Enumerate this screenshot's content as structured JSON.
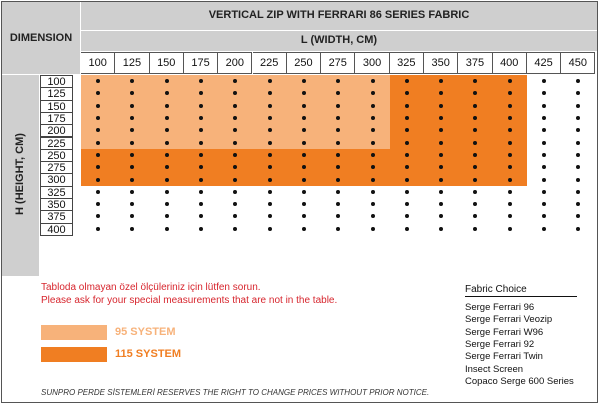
{
  "header": {
    "dimension_label": "DIMENSION",
    "title": "VERTICAL ZIP WITH FERRARI 86 SERIES FABRIC",
    "width_axis_label": "L (WIDTH, CM)",
    "height_axis_label": "H (HEIGHT, CM)"
  },
  "widths": [
    "100",
    "125",
    "150",
    "175",
    "200",
    "225",
    "250",
    "275",
    "300",
    "325",
    "350",
    "375",
    "400",
    "425",
    "450"
  ],
  "heights": [
    "100",
    "125",
    "150",
    "175",
    "200",
    "225",
    "250",
    "275",
    "300",
    "325",
    "350",
    "375",
    "400"
  ],
  "colors": {
    "header_gray": "#cfcfcf",
    "system95": "#f7b27a",
    "system115": "#f07e22",
    "note_red": "#d7262e"
  },
  "notes": {
    "turkish": "Tabloda olmayan özel ölçüleriniz için lütfen sorun.",
    "english": "Please ask for your special measurements that are not in the table."
  },
  "legend": {
    "system95": "95 SYSTEM",
    "system115": "115 SYSTEM"
  },
  "fabric_choice": {
    "title": "Fabric Choice",
    "items": [
      "Serge Ferrari 96",
      "Serge Ferrari Veozip",
      "Serge Ferrari W96",
      "Serge Ferrari 92",
      "Serge Ferrari Twin",
      "Insect Screen",
      "Copaco Serge 600 Series"
    ]
  },
  "disclaimer": "SUNPRO PERDE SİSTEMLERİ RESERVES THE RIGHT TO CHANGE PRICES WITHOUT PRIOR NOTICE."
}
